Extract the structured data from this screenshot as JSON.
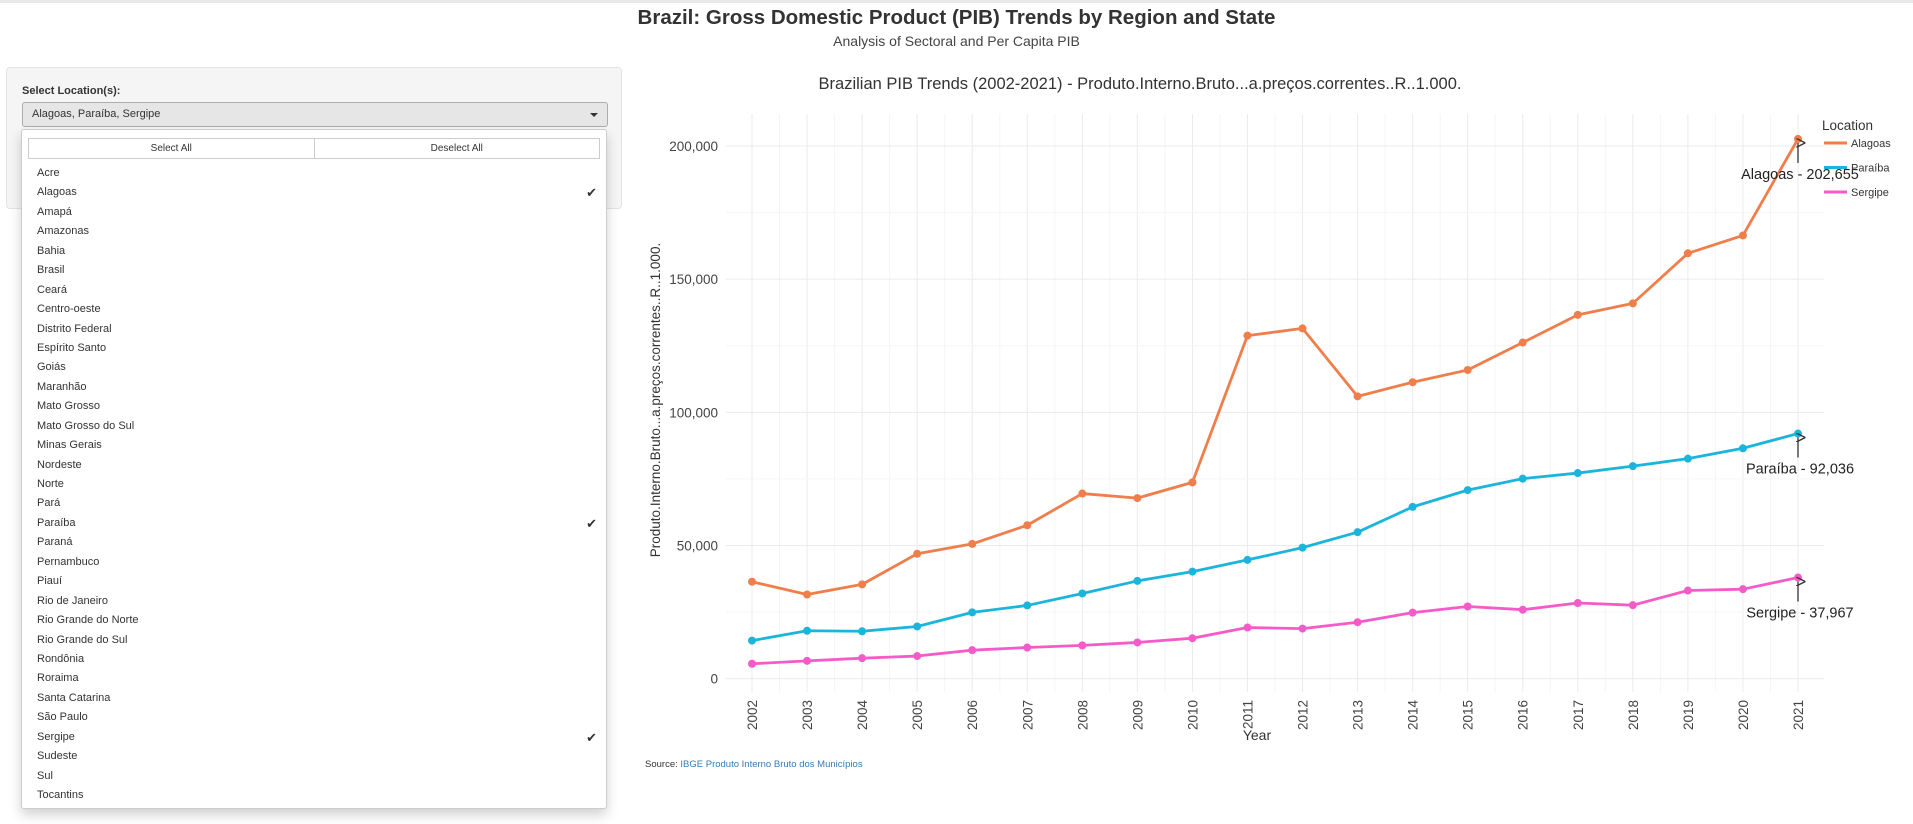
{
  "page": {
    "title": "Brazil: Gross Domestic Product (PIB) Trends by Region and State",
    "subtitle": "Analysis of Sectoral and Per Capita PIB"
  },
  "sidebar": {
    "label": "Select Location(s):",
    "selected_text": "Alagoas, Paraíba, Sergipe",
    "select_all": "Select All",
    "deselect_all": "Deselect All",
    "check_icon": "check-icon",
    "options": [
      {
        "label": "Acre",
        "checked": false
      },
      {
        "label": "Alagoas",
        "checked": true
      },
      {
        "label": "Amapá",
        "checked": false
      },
      {
        "label": "Amazonas",
        "checked": false
      },
      {
        "label": "Bahia",
        "checked": false
      },
      {
        "label": "Brasil",
        "checked": false
      },
      {
        "label": "Ceará",
        "checked": false
      },
      {
        "label": "Centro-oeste",
        "checked": false
      },
      {
        "label": "Distrito Federal",
        "checked": false
      },
      {
        "label": "Espírito Santo",
        "checked": false
      },
      {
        "label": "Goiás",
        "checked": false
      },
      {
        "label": "Maranhão",
        "checked": false
      },
      {
        "label": "Mato Grosso",
        "checked": false
      },
      {
        "label": "Mato Grosso do Sul",
        "checked": false
      },
      {
        "label": "Minas Gerais",
        "checked": false
      },
      {
        "label": "Nordeste",
        "checked": false
      },
      {
        "label": "Norte",
        "checked": false
      },
      {
        "label": "Pará",
        "checked": false
      },
      {
        "label": "Paraíba",
        "checked": true
      },
      {
        "label": "Paraná",
        "checked": false
      },
      {
        "label": "Pernambuco",
        "checked": false
      },
      {
        "label": "Piauí",
        "checked": false
      },
      {
        "label": "Rio de Janeiro",
        "checked": false
      },
      {
        "label": "Rio Grande do Norte",
        "checked": false
      },
      {
        "label": "Rio Grande do Sul",
        "checked": false
      },
      {
        "label": "Rondônia",
        "checked": false
      },
      {
        "label": "Roraima",
        "checked": false
      },
      {
        "label": "Santa Catarina",
        "checked": false
      },
      {
        "label": "São Paulo",
        "checked": false
      },
      {
        "label": "Sergipe",
        "checked": true
      },
      {
        "label": "Sudeste",
        "checked": false
      },
      {
        "label": "Sul",
        "checked": false
      },
      {
        "label": "Tocantins",
        "checked": false
      }
    ]
  },
  "source": {
    "prefix": "Source: ",
    "link_text": "IBGE Produto Interno Bruto dos Municípios",
    "link_color": "#337ab7"
  },
  "chart_data": {
    "type": "line",
    "title": "Brazilian PIB Trends (2002-2021) - Produto.Interno.Bruto...a.preços.correntes..R..1.000.",
    "xlabel": "Year",
    "ylabel": "Produto.Interno.Bruto...a.preços.correntes..R..1.000.",
    "x": [
      2002,
      2003,
      2004,
      2005,
      2006,
      2007,
      2008,
      2009,
      2010,
      2011,
      2012,
      2013,
      2014,
      2015,
      2016,
      2017,
      2018,
      2019,
      2020,
      2021
    ],
    "ylim": [
      -5000,
      212000
    ],
    "yticks": [
      0,
      50000,
      100000,
      150000,
      200000
    ],
    "ytick_labels": [
      "0",
      "50,000",
      "100,000",
      "150,000",
      "200,000"
    ],
    "grid": true,
    "legend_title": "Location",
    "legend_position": "top-right",
    "series": [
      {
        "name": "Alagoas",
        "color": "#F07E4A",
        "values": [
          36400,
          31600,
          35400,
          46900,
          50600,
          57600,
          69500,
          67800,
          73700,
          128800,
          131500,
          106000,
          111300,
          115900,
          126200,
          136600,
          140900,
          159700,
          166400,
          202655
        ]
      },
      {
        "name": "Paraíba",
        "color": "#1BB5DC",
        "values": [
          14300,
          18000,
          17800,
          19600,
          24900,
          27500,
          32000,
          36700,
          40200,
          44600,
          49200,
          55000,
          64500,
          70800,
          75100,
          77200,
          79800,
          82600,
          86500,
          92036
        ]
      },
      {
        "name": "Sergipe",
        "color": "#F55BC8",
        "values": [
          5600,
          6700,
          7700,
          8500,
          10700,
          11700,
          12500,
          13600,
          15200,
          19200,
          18800,
          21200,
          24800,
          27100,
          25900,
          28400,
          27600,
          33100,
          33600,
          37967
        ]
      }
    ],
    "annotations": [
      {
        "series": "Alagoas",
        "text": "Alagoas - 202,655"
      },
      {
        "series": "Paraíba",
        "text": "Paraíba - 92,036"
      },
      {
        "series": "Sergipe",
        "text": "Sergipe - 37,967"
      }
    ]
  }
}
